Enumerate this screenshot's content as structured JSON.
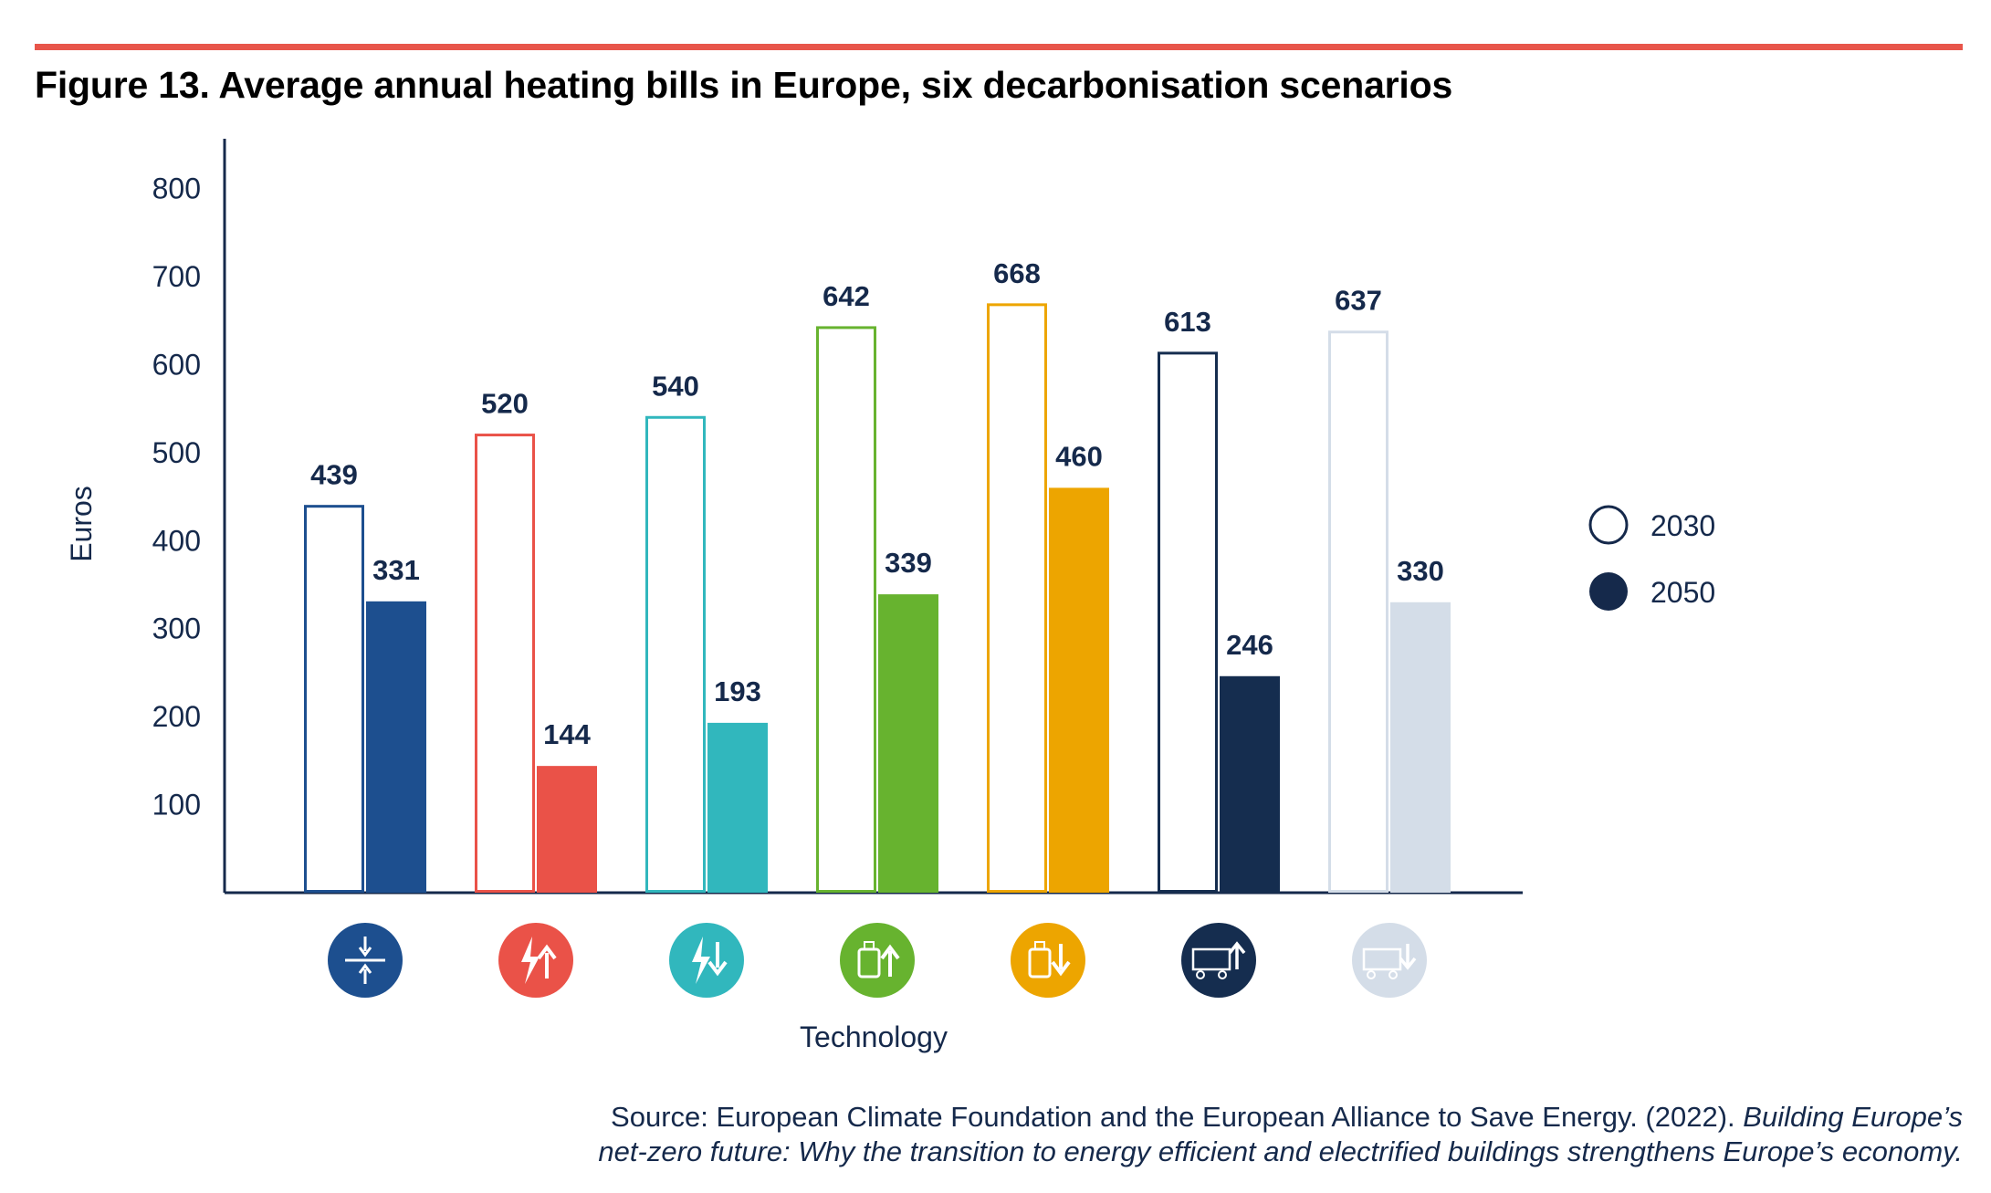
{
  "figure": {
    "title": "Figure 13. Average annual heating bills in Europe, six decarbonisation scenarios",
    "source_text": "Source: European Climate Foundation and the European Alliance to Save Energy. (2022).",
    "source_italic_1": "Building Europe’s",
    "source_italic_2": "net-zero future: Why the transition to energy efficient and electrified buildings strengthens Europe’s economy."
  },
  "chart_data": {
    "type": "bar",
    "title": "Figure 13. Average annual heating bills in Europe, six decarbonisation scenarios",
    "xlabel": "Technology",
    "ylabel": "Euros",
    "ylim": [
      0,
      850
    ],
    "yticks": [
      100,
      200,
      300,
      400,
      500,
      600,
      700,
      800
    ],
    "grid": false,
    "legend_position": "right",
    "categories": [
      "",
      "",
      "",
      "",
      "",
      "",
      ""
    ],
    "category_icons": [
      "efficiency-arrows-icon",
      "electricity-up-icon",
      "electricity-down-icon",
      "hydrogen-tank-up-icon",
      "hydrogen-tank-down-icon",
      "hydrogen-truck-up-icon",
      "hydrogen-truck-down-icon"
    ],
    "colors": [
      "#1d4f8f",
      "#ea5248",
      "#31b7bd",
      "#67b32f",
      "#eda500",
      "#152d4f",
      "#d4dde8"
    ],
    "series": [
      {
        "name": "2030",
        "style": "outline",
        "values": [
          439,
          520,
          540,
          642,
          668,
          613,
          637
        ]
      },
      {
        "name": "2050",
        "style": "filled",
        "values": [
          331,
          144,
          193,
          339,
          460,
          246,
          330
        ]
      }
    ]
  }
}
